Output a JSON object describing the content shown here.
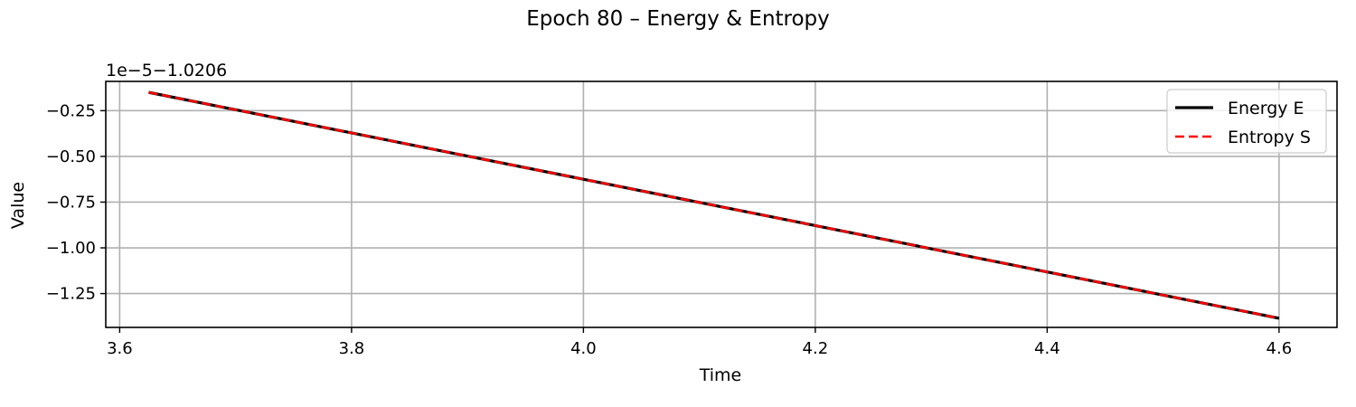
{
  "chart_data": {
    "type": "line",
    "title": "Epoch 80 – Energy & Entropy",
    "xlabel": "Time",
    "ylabel": "Value",
    "y_offset_text": "1e−5−1.0206",
    "xlim": [
      3.588,
      4.65
    ],
    "ylim": [
      -1.435,
      -0.09
    ],
    "x_ticks": [
      3.6,
      3.8,
      4.0,
      4.2,
      4.4,
      4.6
    ],
    "x_tick_labels": [
      "3.6",
      "3.8",
      "4.0",
      "4.2",
      "4.4",
      "4.6"
    ],
    "y_ticks": [
      -0.25,
      -0.5,
      -0.75,
      -1.0,
      -1.25
    ],
    "y_tick_labels": [
      "−0.25",
      "−0.50",
      "−0.75",
      "−1.00",
      "−1.25"
    ],
    "grid": true,
    "legend_position": "top-right",
    "series": [
      {
        "name": "Energy E",
        "color": "#000000",
        "style": "solid",
        "x": [
          3.625,
          4.6
        ],
        "y": [
          -0.15,
          -1.385
        ]
      },
      {
        "name": "Entropy S",
        "color": "#ff0000",
        "style": "dashed",
        "x": [
          3.625,
          4.6
        ],
        "y": [
          -0.15,
          -1.385
        ]
      }
    ]
  }
}
